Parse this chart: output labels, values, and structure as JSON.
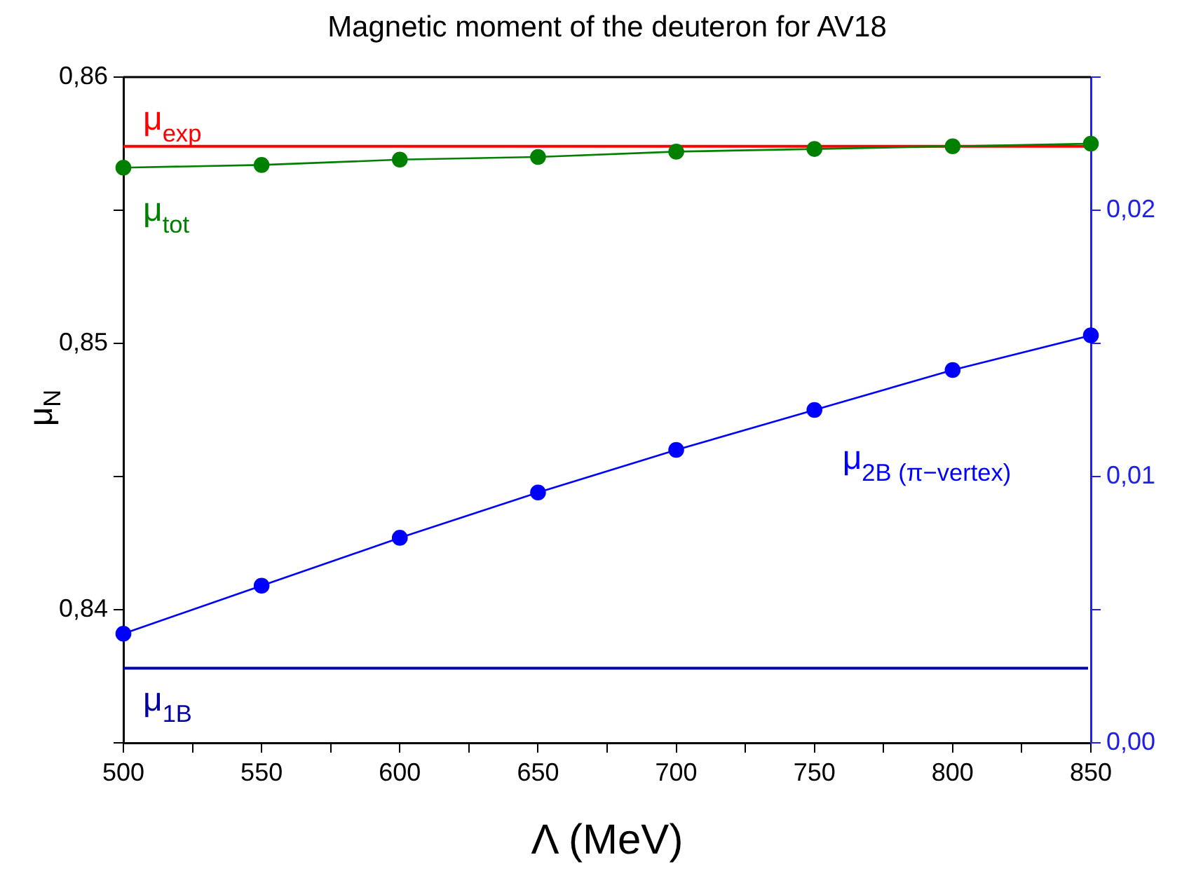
{
  "chart_data": {
    "type": "line",
    "title": "Magnetic moment of the deuteron for AV18",
    "xlabel": "Λ (MeV)",
    "ylabel": "μ$_{N}$",
    "x": [
      500,
      550,
      600,
      650,
      700,
      750,
      800,
      850
    ],
    "series": [
      {
        "name": "μ$_{tot}$",
        "color": "#008000",
        "values": [
          0.8566,
          0.8567,
          0.8569,
          0.857,
          0.8572,
          0.8573,
          0.8574,
          0.8575
        ]
      },
      {
        "name": "μ$_{2B (π−vertex)}$",
        "color": "#0000ff",
        "axis": "y2",
        "values": [
          0.0041,
          0.0059,
          0.0077,
          0.0094,
          0.011,
          0.0125,
          0.014,
          0.0153
        ]
      }
    ],
    "ref_lines": [
      {
        "axis": "y",
        "value": 0.8574,
        "label": "μ$_{exp}$",
        "color": "#ff0000"
      },
      {
        "axis": "y",
        "value": 0.8378,
        "label": "μ$_{1B}$",
        "color": "#0000a0"
      }
    ],
    "xlim": [
      500,
      850
    ],
    "xticks": [
      500,
      {
        "value": 525,
        "label": null
      },
      550,
      {
        "value": 575,
        "label": null
      },
      600,
      {
        "value": 625,
        "label": null
      },
      650,
      {
        "value": 675,
        "label": null
      },
      700,
      {
        "value": 725,
        "label": null
      },
      750,
      {
        "value": 775,
        "label": null
      },
      800,
      {
        "value": 825,
        "label": null
      },
      850
    ],
    "ylim": [
      0.835,
      0.86
    ],
    "yticks": [
      {
        "value": 0.835,
        "label": null
      },
      {
        "value": 0.84,
        "label": "0,84"
      },
      {
        "value": 0.845,
        "label": null
      },
      {
        "value": 0.85,
        "label": "0,85"
      },
      {
        "value": 0.855,
        "label": null
      },
      {
        "value": 0.86,
        "label": "0,86"
      }
    ],
    "y2lim": [
      0,
      0.025
    ],
    "y2ticks": [
      {
        "value": 0,
        "label": "0,00"
      },
      {
        "value": 0.005,
        "label": null
      },
      {
        "value": 0.01,
        "label": "0,01"
      },
      {
        "value": 0.015,
        "label": null
      },
      {
        "value": 0.02,
        "label": "0,02"
      },
      {
        "value": 0.025,
        "label": null
      }
    ],
    "grid": false,
    "legend": false,
    "marker": "circle",
    "line_style": "solid"
  }
}
